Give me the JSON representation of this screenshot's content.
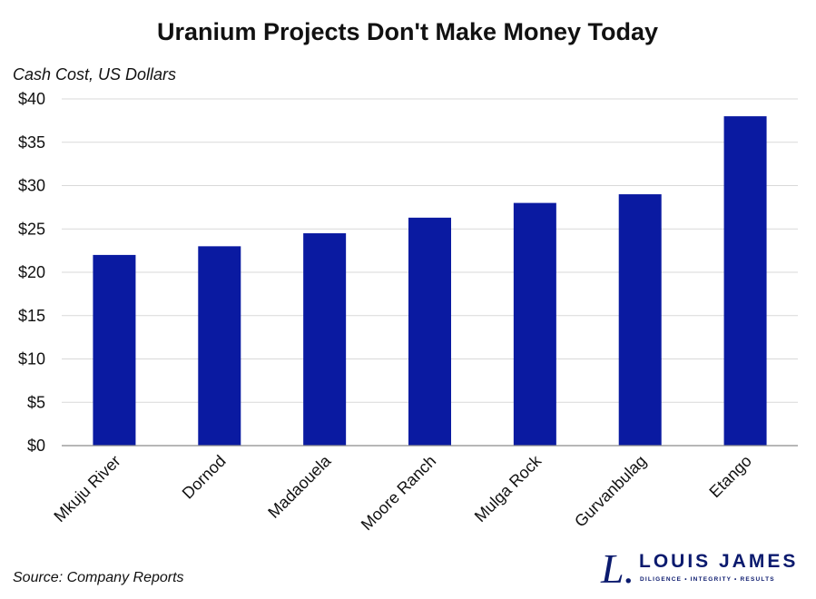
{
  "chart_data": {
    "type": "bar",
    "title": "Uranium Projects Don't Make Money Today",
    "ylabel": "Cash Cost, US Dollars",
    "xlabel": "",
    "categories": [
      "Mkuju River",
      "Dornod",
      "Madaouela",
      "Moore Ranch",
      "Mulga Rock",
      "Gurvanbulag",
      "Etango"
    ],
    "values": [
      22,
      23,
      24.5,
      26.3,
      28,
      29,
      38
    ],
    "ylim": [
      0,
      40
    ],
    "yticks": [
      0,
      5,
      10,
      15,
      20,
      25,
      30,
      35,
      40
    ],
    "ytick_labels": [
      "$0",
      "$5",
      "$10",
      "$15",
      "$20",
      "$25",
      "$30",
      "$35",
      "$40"
    ],
    "grid": true,
    "legend": "none",
    "bar_color": "#0a1aa1"
  },
  "footer": {
    "source": "Source: Company Reports"
  },
  "logo": {
    "mark": "L.",
    "name": "LOUIS JAMES",
    "tagline": "DILIGENCE • INTEGRITY • RESULTS",
    "color": "#0b1a6e"
  }
}
